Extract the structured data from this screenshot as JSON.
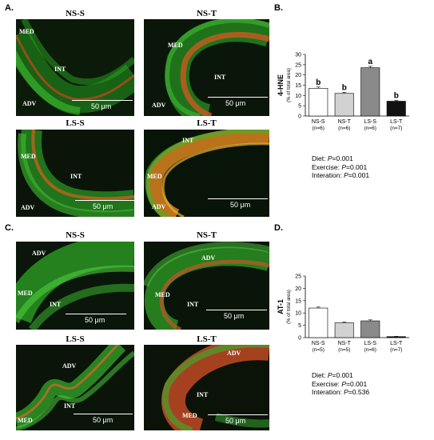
{
  "panels": {
    "A": {
      "letter": "A.",
      "images": [
        {
          "title": "NS-S",
          "labels": [
            "MED",
            "INT",
            "ADV"
          ],
          "scale": "50 μm"
        },
        {
          "title": "NS-T",
          "labels": [
            "MED",
            "INT",
            "ADV"
          ],
          "scale": "50 μm"
        },
        {
          "title": "LS-S",
          "labels": [
            "MED",
            "INT",
            "ADV"
          ],
          "scale": "50 μm"
        },
        {
          "title": "LS-T",
          "labels": [
            "INT",
            "MED",
            "ADV"
          ],
          "scale": "50 μm"
        }
      ]
    },
    "B": {
      "letter": "B."
    },
    "C": {
      "letter": "C.",
      "images": [
        {
          "title": "NS-S",
          "labels": [
            "ADV",
            "MED",
            "INT"
          ],
          "scale": "50 μm"
        },
        {
          "title": "NS-T",
          "labels": [
            "ADV",
            "MED",
            "INT"
          ],
          "scale": "50 μm"
        },
        {
          "title": "LS-S",
          "labels": [
            "ADV",
            "INT",
            "MED"
          ],
          "scale": "50 μm"
        },
        {
          "title": "LS-T",
          "labels": [
            "ADV",
            "INT",
            "MED"
          ],
          "scale": "50 μm"
        }
      ]
    },
    "D": {
      "letter": "D."
    }
  },
  "chart_data": [
    {
      "type": "bar",
      "ylabel": "4-HNE",
      "ylabel_sub": "(% of  total area)",
      "ylim": [
        0,
        30
      ],
      "yticks": [
        0,
        5,
        10,
        15,
        20,
        25,
        30
      ],
      "categories": [
        "NS-S",
        "NS-T",
        "LS-S",
        "LS-T"
      ],
      "ns": [
        "(n=6)",
        "(n=6)",
        "(n=6)",
        "(n=7)"
      ],
      "values": [
        13.5,
        11,
        23.5,
        7.2
      ],
      "errors": [
        0.6,
        0.5,
        0.7,
        0.4
      ],
      "letters": [
        "b",
        "b",
        "a",
        "b"
      ],
      "colors": [
        "#ffffff",
        "#d2d2d2",
        "#8a8a8a",
        "#111111"
      ],
      "stats": [
        {
          "label": "Diet: ",
          "p": "P",
          "val": "=0.001"
        },
        {
          "label": "Exercise: ",
          "p": "P",
          "val": "=0.001"
        },
        {
          "label": "Interation: ",
          "p": "P",
          "val": "=0.001"
        }
      ]
    },
    {
      "type": "bar",
      "ylabel": "AT-1",
      "ylabel_sub": "(% of  total area)",
      "ylim": [
        0,
        25
      ],
      "yticks": [
        0,
        5,
        10,
        15,
        20,
        25
      ],
      "categories": [
        "NS-S",
        "NS-T",
        "LS-S",
        "LS-T"
      ],
      "ns": [
        "(n=5)",
        "(n=5)",
        "(n=6)",
        "(n=7)"
      ],
      "values": [
        12,
        6,
        6.8,
        0.4
      ],
      "errors": [
        0.4,
        0.3,
        0.4,
        0.1
      ],
      "letters": [],
      "colors": [
        "#ffffff",
        "#d2d2d2",
        "#8a8a8a",
        "#111111"
      ],
      "stats": [
        {
          "label": "Diet: ",
          "p": "P",
          "val": "=0.001"
        },
        {
          "label": "Exercise: ",
          "p": "P",
          "val": "=0.001"
        },
        {
          "label": "Interation: ",
          "p": "P",
          "val": "=0.536"
        }
      ]
    }
  ]
}
